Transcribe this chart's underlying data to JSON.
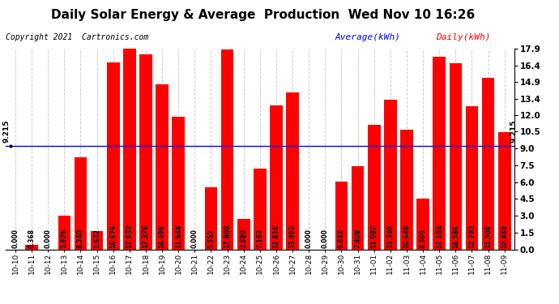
{
  "title": "Daily Solar Energy & Average  Production  Wed Nov 10 16:26",
  "copyright": "Copyright 2021  Cartronics.com",
  "categories": [
    "10-10",
    "10-11",
    "10-12",
    "10-13",
    "10-14",
    "10-15",
    "10-16",
    "10-17",
    "10-18",
    "10-19",
    "10-20",
    "10-21",
    "10-22",
    "10-23",
    "10-24",
    "10-25",
    "10-26",
    "10-27",
    "10-28",
    "10-29",
    "10-30",
    "10-31",
    "11-01",
    "11-02",
    "11-03",
    "11-04",
    "11-05",
    "11-06",
    "11-07",
    "11-08",
    "11-09"
  ],
  "values": [
    0.0,
    0.368,
    0.0,
    2.976,
    8.24,
    1.632,
    16.676,
    17.932,
    17.376,
    14.696,
    11.848,
    0.0,
    5.552,
    17.8,
    2.68,
    7.192,
    12.816,
    13.992,
    0.0,
    0.0,
    6.036,
    7.408,
    11.092,
    13.34,
    10.648,
    4.5,
    17.184,
    16.584,
    12.792,
    15.308,
    10.46
  ],
  "average": 9.215,
  "bar_color": "#ff0000",
  "average_line_color": "#0000ff",
  "background_color": "#ffffff",
  "grid_color": "#cccccc",
  "ylim": [
    0.0,
    17.9
  ],
  "yticks": [
    0.0,
    1.5,
    3.0,
    4.5,
    6.0,
    7.5,
    9.0,
    10.5,
    12.0,
    13.4,
    14.9,
    16.4,
    17.9
  ],
  "avg_label": "Average(kWh)",
  "daily_label": "Daily(kWh)",
  "avg_label_color": "#0000ff",
  "daily_label_color": "#ff0000",
  "avg_annotation": "9.215",
  "title_fontsize": 11,
  "copyright_fontsize": 7,
  "bar_value_fontsize": 5.5,
  "tick_fontsize": 6.5,
  "right_ytick_fontsize": 7.5,
  "legend_fontsize": 8
}
